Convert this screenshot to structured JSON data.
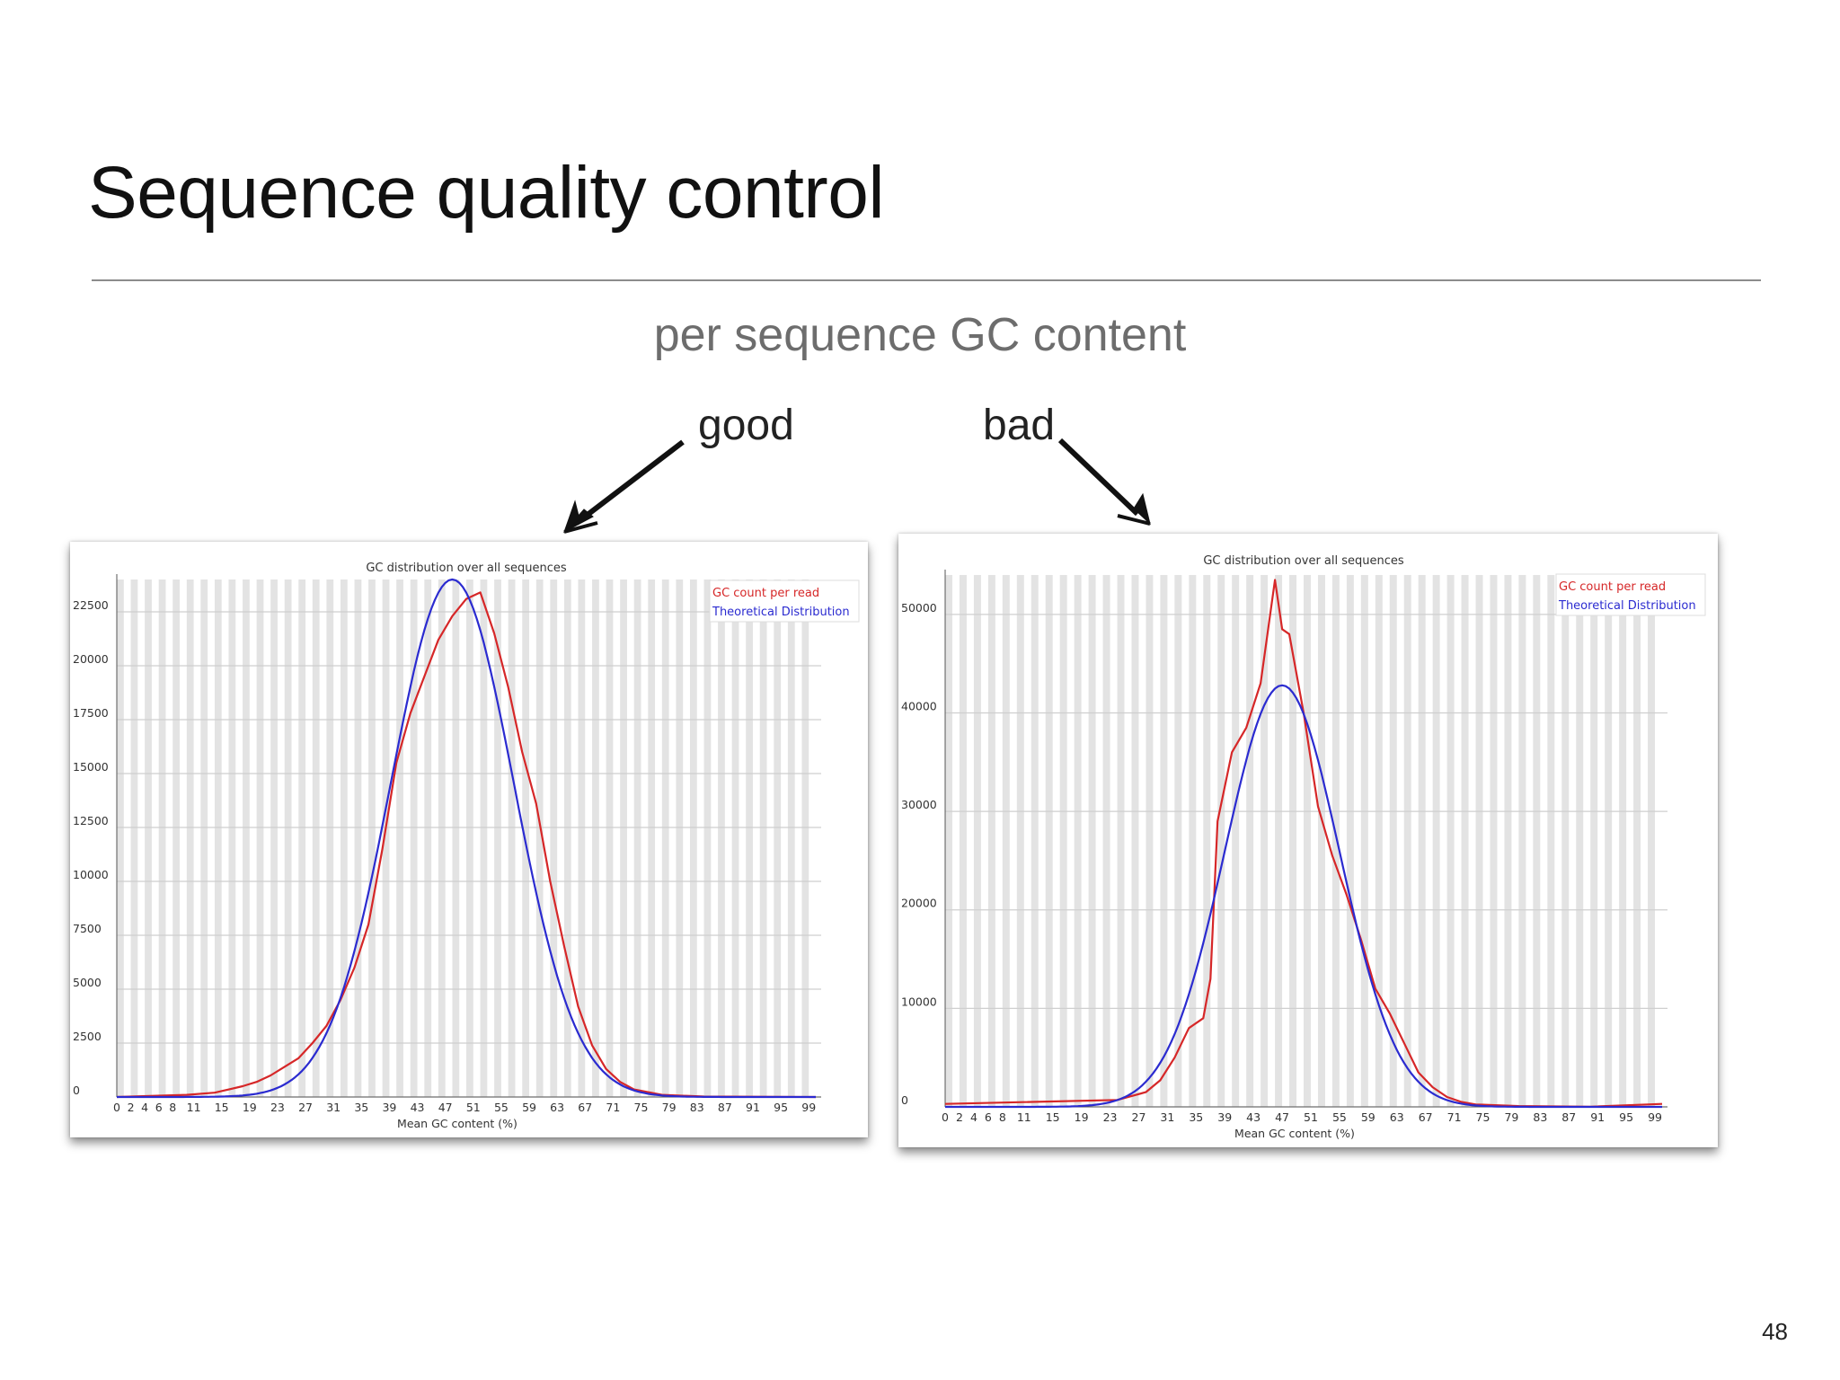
{
  "slide": {
    "title": "Sequence quality control",
    "subtitle": "per sequence GC content",
    "label_good": "good",
    "label_bad": "bad",
    "page_number": "48"
  },
  "colors": {
    "observed": "#d62728",
    "theoretical": "#2b2bd0",
    "grid_stripe": "#e3e3e3",
    "grid_line": "#cfcfcf"
  },
  "chart_data": [
    {
      "type": "line",
      "title": "GC distribution over all sequences",
      "xlabel": "Mean GC content (%)",
      "ylabel": "",
      "x_ticks": [
        "0",
        "2",
        "4",
        "6",
        "8",
        "11",
        "15",
        "19",
        "23",
        "27",
        "31",
        "35",
        "39",
        "43",
        "47",
        "51",
        "55",
        "59",
        "63",
        "67",
        "71",
        "75",
        "79",
        "83",
        "87",
        "91",
        "95",
        "99"
      ],
      "xlim": [
        0,
        100
      ],
      "y_ticks": [
        0,
        2500,
        5000,
        7500,
        10000,
        12500,
        15000,
        17500,
        20000,
        22500
      ],
      "ylim": [
        0,
        24000
      ],
      "grid": true,
      "legend_position": "top-right",
      "series": [
        {
          "name": "GC count per read",
          "color": "#d62728",
          "points": [
            [
              0,
              0
            ],
            [
              10,
              100
            ],
            [
              14,
              200
            ],
            [
              18,
              500
            ],
            [
              20,
              700
            ],
            [
              22,
              1000
            ],
            [
              24,
              1400
            ],
            [
              26,
              1800
            ],
            [
              28,
              2500
            ],
            [
              30,
              3300
            ],
            [
              32,
              4500
            ],
            [
              34,
              6000
            ],
            [
              36,
              8000
            ],
            [
              38,
              11500
            ],
            [
              40,
              15500
            ],
            [
              42,
              17800
            ],
            [
              44,
              19500
            ],
            [
              46,
              21200
            ],
            [
              48,
              22300
            ],
            [
              50,
              23100
            ],
            [
              52,
              23400
            ],
            [
              54,
              21500
            ],
            [
              56,
              19000
            ],
            [
              58,
              16000
            ],
            [
              60,
              13600
            ],
            [
              62,
              10000
            ],
            [
              64,
              7000
            ],
            [
              66,
              4200
            ],
            [
              68,
              2400
            ],
            [
              70,
              1300
            ],
            [
              72,
              700
            ],
            [
              74,
              350
            ],
            [
              78,
              100
            ],
            [
              84,
              20
            ],
            [
              100,
              0
            ]
          ]
        },
        {
          "name": "Theoretical Distribution",
          "color": "#2b2bd0",
          "gauss": {
            "mean": 48,
            "sd": 8.8,
            "peak": 24000
          }
        }
      ]
    },
    {
      "type": "line",
      "title": "GC distribution over all sequences",
      "xlabel": "Mean GC content (%)",
      "ylabel": "",
      "x_ticks": [
        "0",
        "2",
        "4",
        "6",
        "8",
        "11",
        "15",
        "19",
        "23",
        "27",
        "31",
        "35",
        "39",
        "43",
        "47",
        "51",
        "55",
        "59",
        "63",
        "67",
        "71",
        "75",
        "79",
        "83",
        "87",
        "91",
        "95",
        "99"
      ],
      "xlim": [
        0,
        100
      ],
      "y_ticks": [
        0,
        10000,
        20000,
        30000,
        40000,
        50000
      ],
      "ylim": [
        0,
        54000
      ],
      "grid": true,
      "legend_position": "top-right",
      "series": [
        {
          "name": "GC count per read",
          "color": "#d62728",
          "points": [
            [
              0,
              300
            ],
            [
              24,
              700
            ],
            [
              28,
              1500
            ],
            [
              30,
              2700
            ],
            [
              32,
              5000
            ],
            [
              34,
              8000
            ],
            [
              36,
              9000
            ],
            [
              37,
              13000
            ],
            [
              38,
              29000
            ],
            [
              40,
              36000
            ],
            [
              42,
              38500
            ],
            [
              44,
              43000
            ],
            [
              46,
              53500
            ],
            [
              47,
              48500
            ],
            [
              48,
              48000
            ],
            [
              50,
              40000
            ],
            [
              52,
              30500
            ],
            [
              54,
              25500
            ],
            [
              56,
              21500
            ],
            [
              58,
              17000
            ],
            [
              60,
              12000
            ],
            [
              62,
              9500
            ],
            [
              64,
              6500
            ],
            [
              66,
              3500
            ],
            [
              68,
              2000
            ],
            [
              70,
              1000
            ],
            [
              72,
              500
            ],
            [
              74,
              250
            ],
            [
              80,
              80
            ],
            [
              90,
              20
            ],
            [
              100,
              300
            ]
          ]
        },
        {
          "name": "Theoretical Distribution",
          "color": "#2b2bd0",
          "gauss": {
            "mean": 47,
            "sd": 8.0,
            "peak": 42800
          }
        }
      ]
    }
  ]
}
